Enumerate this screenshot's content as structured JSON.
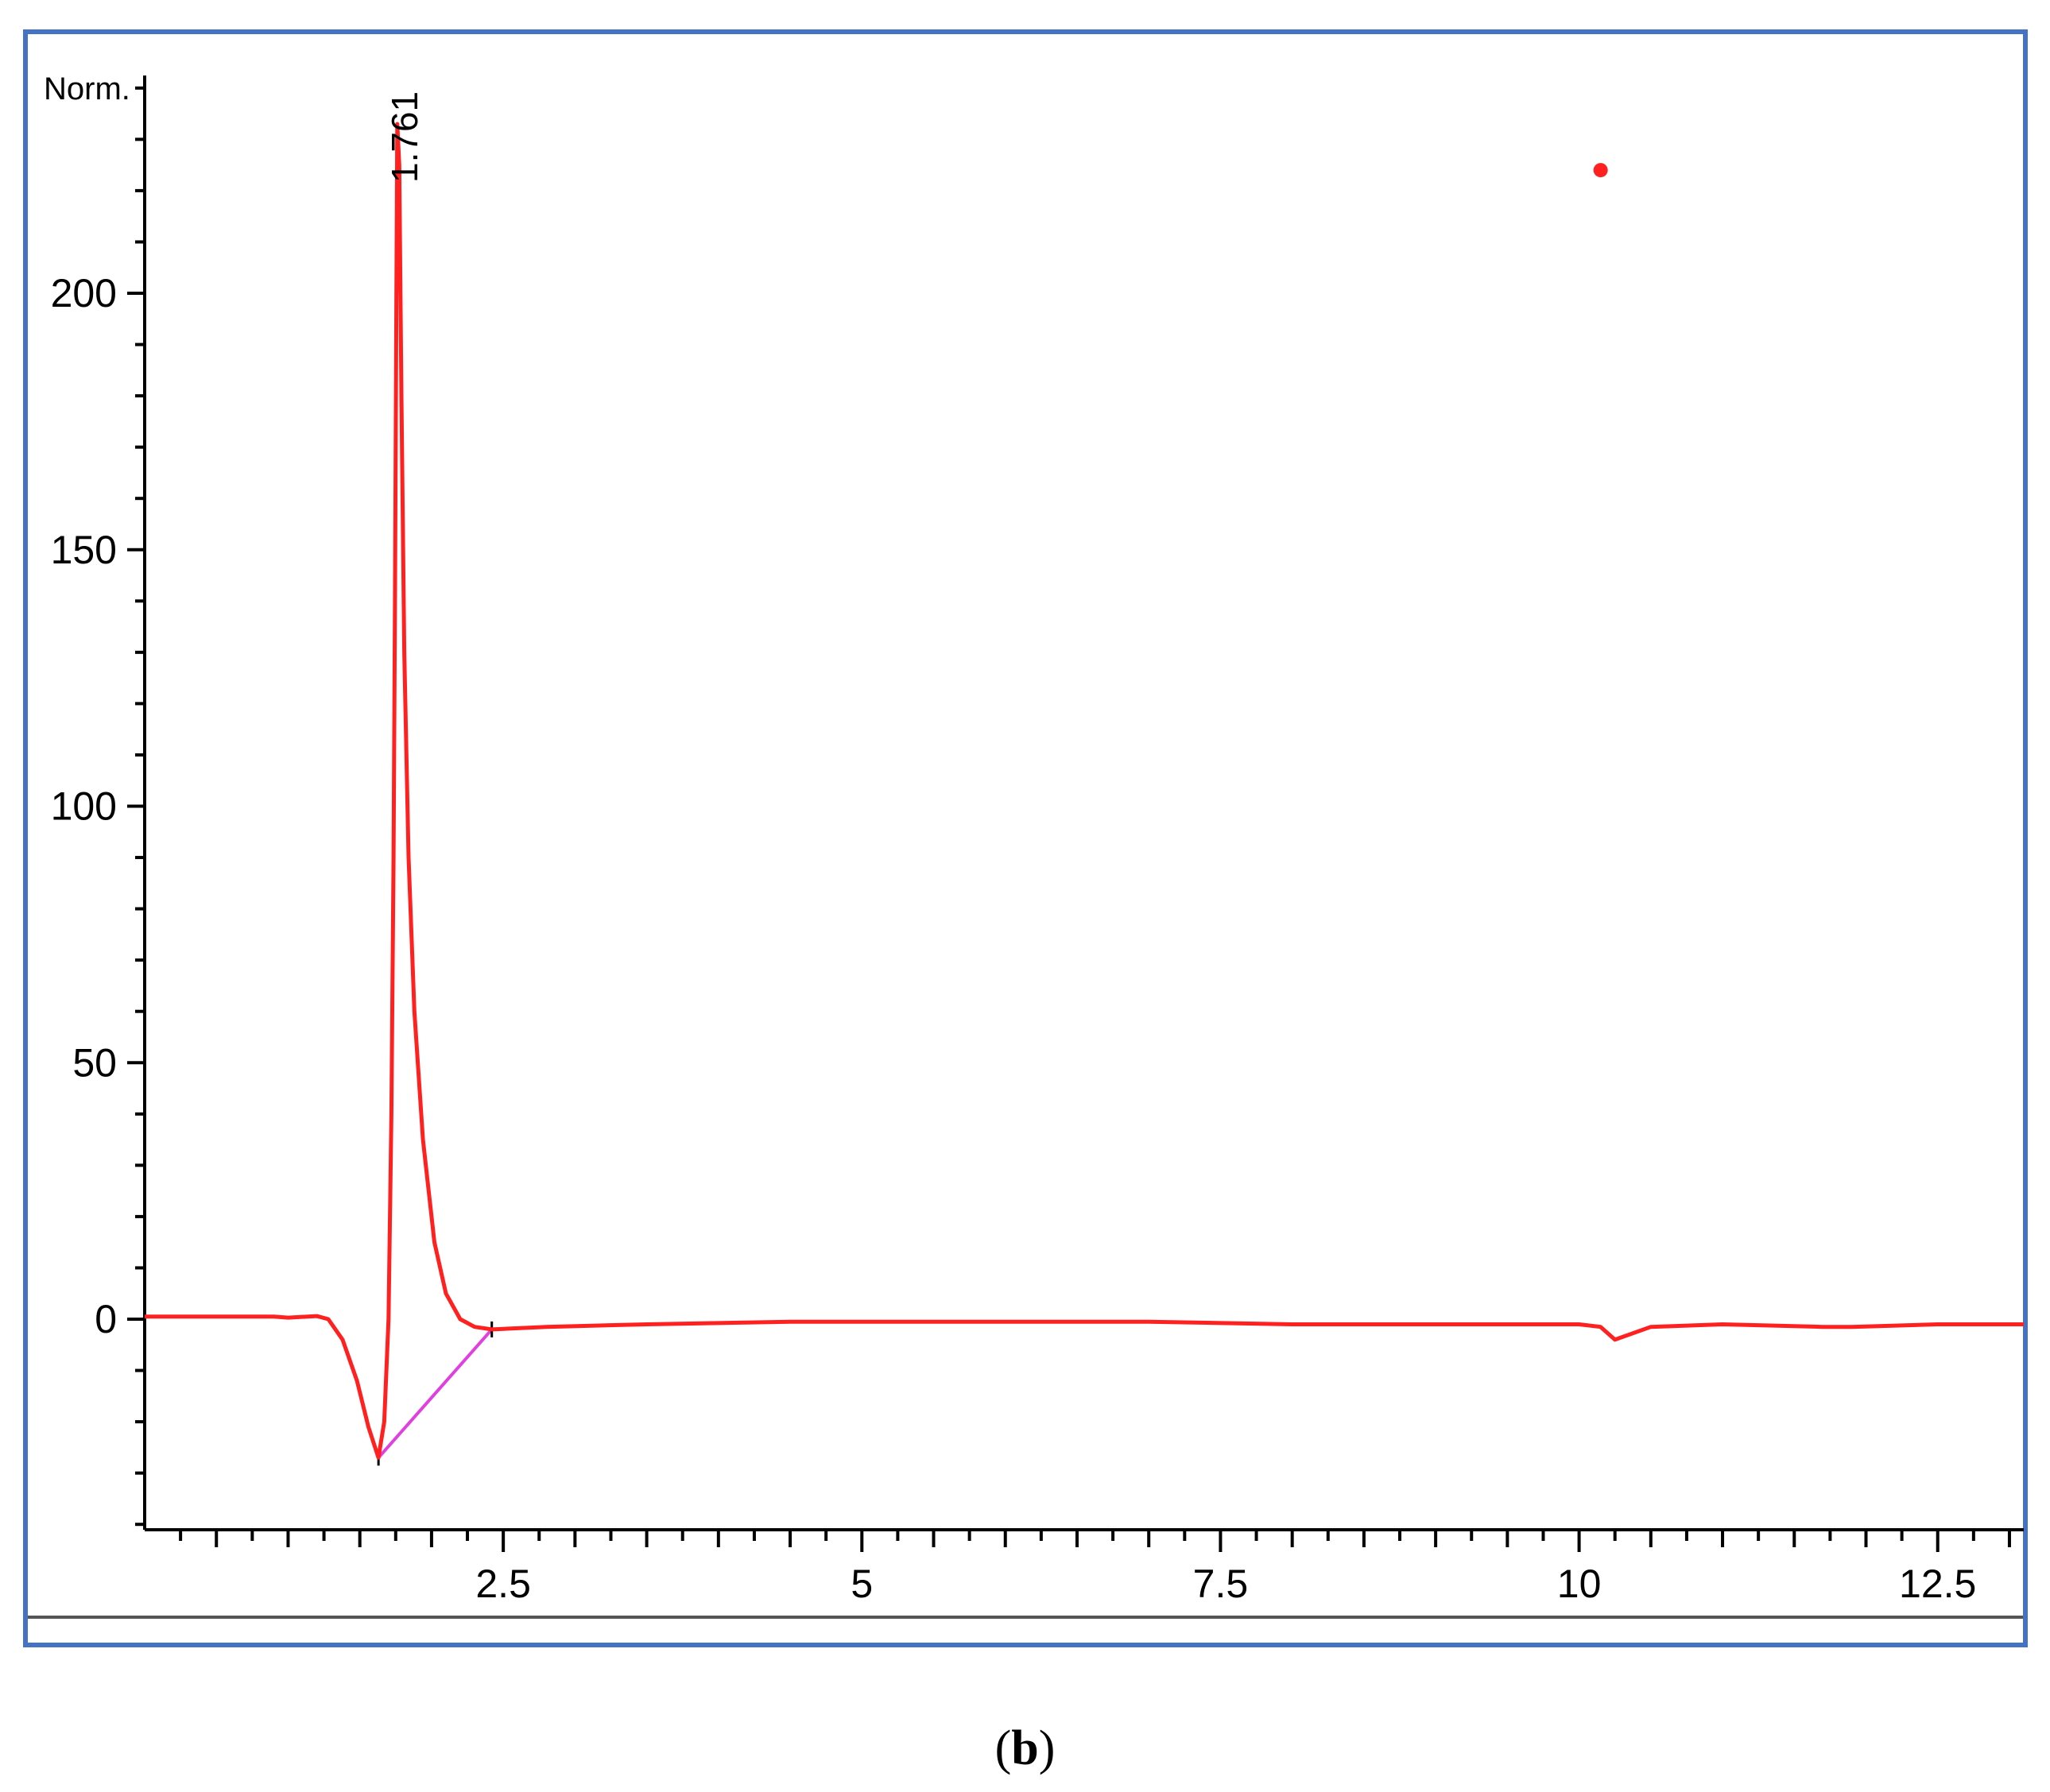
{
  "caption": {
    "open": "(",
    "letter": "b",
    "close": ")"
  },
  "colors": {
    "frame": "#4472c4",
    "signal": "#ff2020",
    "baseline": "#e040e0",
    "axis": "#000000"
  },
  "chart_data": {
    "type": "line",
    "title": "",
    "xlabel": "",
    "ylabel": "Norm.",
    "xlim": [
      0,
      13.1
    ],
    "ylim": [
      -40,
      245
    ],
    "x_ticks": [
      2.5,
      5,
      7.5,
      10,
      12.5
    ],
    "x_tick_labels": [
      "2.5",
      "5",
      "7.5",
      "10",
      "12.5"
    ],
    "y_ticks": [
      0,
      50,
      100,
      150,
      200
    ],
    "y_tick_labels": [
      "0",
      "50",
      "100",
      "150",
      "200"
    ],
    "grid": false,
    "legend": "none",
    "peak_annotation": {
      "x": 1.761,
      "label": "1.761"
    },
    "marker_point": {
      "x": 10.15,
      "y": 224
    },
    "integration_baseline": [
      [
        1.63,
        -27
      ],
      [
        2.42,
        -2
      ]
    ],
    "series": [
      {
        "values": [
          [
            0.0,
            0.5
          ],
          [
            0.5,
            0.5
          ],
          [
            0.9,
            0.5
          ],
          [
            1.0,
            0.3
          ],
          [
            1.2,
            0.6
          ],
          [
            1.28,
            0
          ],
          [
            1.38,
            -4
          ],
          [
            1.48,
            -12
          ],
          [
            1.56,
            -21
          ],
          [
            1.63,
            -27
          ],
          [
            1.67,
            -20
          ],
          [
            1.7,
            0
          ],
          [
            1.72,
            40
          ],
          [
            1.735,
            90
          ],
          [
            1.745,
            140
          ],
          [
            1.755,
            200
          ],
          [
            1.761,
            233
          ],
          [
            1.775,
            225
          ],
          [
            1.79,
            180
          ],
          [
            1.81,
            130
          ],
          [
            1.84,
            90
          ],
          [
            1.88,
            60
          ],
          [
            1.94,
            35
          ],
          [
            2.02,
            15
          ],
          [
            2.1,
            5
          ],
          [
            2.2,
            0
          ],
          [
            2.3,
            -1.5
          ],
          [
            2.42,
            -2
          ],
          [
            2.8,
            -1.5
          ],
          [
            3.5,
            -1
          ],
          [
            4.5,
            -0.5
          ],
          [
            6.0,
            -0.5
          ],
          [
            7.0,
            -0.5
          ],
          [
            8.0,
            -1
          ],
          [
            9.0,
            -1
          ],
          [
            9.5,
            -1
          ],
          [
            10.0,
            -1
          ],
          [
            10.15,
            -1.5
          ],
          [
            10.25,
            -4
          ],
          [
            10.5,
            -1.5
          ],
          [
            11.0,
            -1
          ],
          [
            11.7,
            -1.5
          ],
          [
            11.9,
            -1.5
          ],
          [
            12.5,
            -1
          ],
          [
            13.1,
            -1
          ]
        ]
      }
    ]
  }
}
